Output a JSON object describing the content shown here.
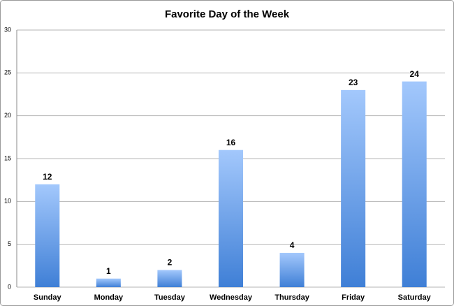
{
  "chart_data": {
    "type": "bar",
    "title": "Favorite Day of the Week",
    "categories": [
      "Sunday",
      "Monday",
      "Tuesday",
      "Wednesday",
      "Thursday",
      "Friday",
      "Saturday"
    ],
    "values": [
      12,
      1,
      2,
      16,
      4,
      23,
      24
    ],
    "color": "#3f7fd6",
    "ylim": [
      0,
      30
    ],
    "yticks": [
      0,
      5,
      10,
      15,
      20,
      25,
      30
    ],
    "grid": true
  }
}
